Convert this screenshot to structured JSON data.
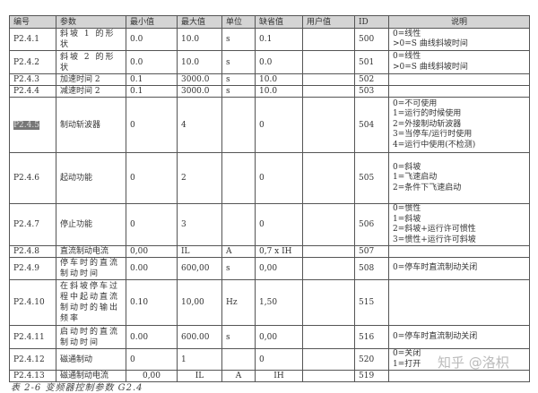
{
  "headers": [
    "编号",
    "参数",
    "最小值",
    "最大值",
    "单位",
    "缺省值",
    "用户值",
    "ID",
    "说明"
  ],
  "rows": [
    {
      "code": "P2.4.1",
      "param": "斜坡 1 的形状",
      "min": "0.0",
      "max": "10.0",
      "unit": "s",
      "default": "0.1",
      "user": "",
      "id": "500",
      "desc": "0=线性\n>0=S 曲线斜坡时间"
    },
    {
      "code": "P2.4.2",
      "param": "斜坡 2 的形状",
      "min": "0.0",
      "max": "10.0",
      "unit": "s",
      "default": "0.0",
      "user": "",
      "id": "501",
      "desc": "0=线性\n>0=S 曲线斜坡时间"
    },
    {
      "code": "P2.4.3",
      "param": "加速时间 2",
      "min": "0.1",
      "max": "3000.0",
      "unit": "s",
      "default": "10.0",
      "user": "",
      "id": "502",
      "desc": ""
    },
    {
      "code": "P2.4.4",
      "param": "减速时间 2",
      "min": "0.1",
      "max": "3000.0",
      "unit": "s",
      "default": "10.0",
      "user": "",
      "id": "503",
      "desc": ""
    },
    {
      "code": "P2.4.5",
      "param": "制动斩波器",
      "min": "0",
      "max": "4",
      "unit": "",
      "default": "0",
      "user": "",
      "id": "504",
      "desc": "0=不可使用\n1=运行的时候使用\n2=外接制动斩波器\n3=当停车/运行时使用\n4=运行中使用(不检测)"
    },
    {
      "code": "P2.4.6",
      "param": "起动功能",
      "min": "0",
      "max": "2",
      "unit": "",
      "default": "0",
      "user": "",
      "id": "505",
      "desc": "0=斜坡\n1=飞速启动\n2=条件下飞速启动"
    },
    {
      "code": "P2.4.7",
      "param": "停止功能",
      "min": "0",
      "max": "3",
      "unit": "",
      "default": "0",
      "user": "",
      "id": "506",
      "desc": "0=惯性\n1=斜坡\n2=斜坡+运行许可惯性\n3=惯性+运行许可斜坡"
    },
    {
      "code": "P2.4.8",
      "param": "直流制动电流",
      "min": "0,00",
      "max": "IL",
      "unit": "A",
      "default": "0,7 x IH",
      "user": "",
      "id": "507",
      "desc": ""
    },
    {
      "code": "P2.4.9",
      "param": "停车时的直流制动时间",
      "min": "0.00",
      "max": "600,00",
      "unit": "s",
      "default": "0,00",
      "user": "",
      "id": "508",
      "desc": "0=停车时直流制动关闭"
    },
    {
      "code": "P2.4.10",
      "param": "在斜坡停车过程中起动直流制动时的输出频率",
      "min": "0.10",
      "max": "10,00",
      "unit": "Hz",
      "default": "1,50",
      "user": "",
      "id": "515",
      "desc": ""
    },
    {
      "code": "P2.4.11",
      "param": "启动时的直流制动时间",
      "min": "0.00",
      "max": "600.00",
      "unit": "s",
      "default": "0,00",
      "user": "",
      "id": "516",
      "desc": "0=停车时直流制动关闭"
    },
    {
      "code": "P2.4.12",
      "param": "磁通制动",
      "min": "0",
      "max": "1",
      "unit": "",
      "default": "0",
      "user": "",
      "id": "520",
      "desc": "0=关闭\n1=打开"
    },
    {
      "code": "P2.4.13",
      "param": "磁通制动电流",
      "min": "0,00",
      "max": "IL",
      "unit": "A",
      "default": "IH",
      "user": "",
      "id": "519",
      "desc": ""
    }
  ],
  "caption": "表 2-6  变频器控制参数  G2.4",
  "watermark": "知乎 @洛枳"
}
